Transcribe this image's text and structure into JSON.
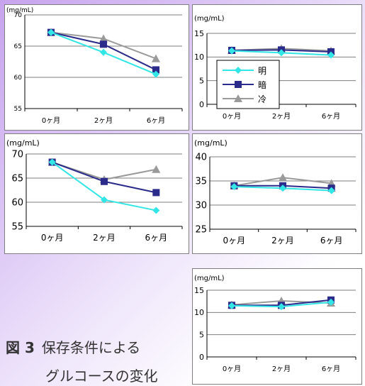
{
  "caption": {
    "number": "図 3",
    "line1": "保存条件による",
    "line2": "グルコースの変化"
  },
  "legend": {
    "items": [
      "明",
      "暗",
      "冷"
    ]
  },
  "colors": {
    "明": "#33e6e6",
    "暗": "#2b2b8c",
    "冷": "#9a9a9a",
    "grid": "#7f7f7f",
    "axis": "#000000"
  },
  "chart_data": [
    {
      "type": "line",
      "ylabel": "(mg/mL)",
      "ylim": [
        55,
        70
      ],
      "yticks": [
        55,
        60,
        65,
        70
      ],
      "categories": [
        "0ヶ月",
        "2ヶ月",
        "6ヶ月"
      ],
      "legend": "none",
      "grid": true,
      "series": [
        {
          "name": "明",
          "values": [
            67.2,
            64.0,
            60.5
          ]
        },
        {
          "name": "暗",
          "values": [
            67.2,
            65.3,
            61.2
          ]
        },
        {
          "name": "冷",
          "values": [
            67.2,
            66.2,
            63.0
          ]
        }
      ]
    },
    {
      "type": "line",
      "ylabel": "(mg/mL)",
      "ylim": [
        0,
        15
      ],
      "yticks": [
        0,
        5,
        10,
        15
      ],
      "categories": [
        "0ヶ月",
        "2ヶ月",
        "6ヶ月"
      ],
      "legend": "inside-left",
      "grid": true,
      "series": [
        {
          "name": "明",
          "values": [
            11.3,
            10.9,
            10.4
          ]
        },
        {
          "name": "暗",
          "values": [
            11.4,
            11.5,
            11.1
          ]
        },
        {
          "name": "冷",
          "values": [
            11.4,
            11.8,
            11.3
          ]
        }
      ]
    },
    {
      "type": "line",
      "ylabel": "(mg/mL)",
      "ylim": [
        55,
        70
      ],
      "yticks": [
        55,
        60,
        65,
        70
      ],
      "categories": [
        "0ヶ月",
        "2ヶ月",
        "6ヶ月"
      ],
      "legend": "none",
      "grid": true,
      "series": [
        {
          "name": "明",
          "values": [
            68.3,
            60.5,
            58.3
          ]
        },
        {
          "name": "暗",
          "values": [
            68.3,
            64.3,
            62.0
          ]
        },
        {
          "name": "冷",
          "values": [
            68.3,
            64.7,
            66.8
          ]
        }
      ]
    },
    {
      "type": "line",
      "ylabel": "(mg/mL)",
      "ylim": [
        25,
        40
      ],
      "yticks": [
        25,
        30,
        35,
        40
      ],
      "categories": [
        "0ヶ月",
        "2ヶ月",
        "6ヶ月"
      ],
      "legend": "none",
      "grid": true,
      "series": [
        {
          "name": "明",
          "values": [
            33.8,
            33.5,
            33.0
          ]
        },
        {
          "name": "暗",
          "values": [
            34.0,
            34.0,
            33.5
          ]
        },
        {
          "name": "冷",
          "values": [
            34.0,
            35.7,
            34.5
          ]
        }
      ]
    },
    {
      "type": "line",
      "ylabel": "(mg/mL)",
      "ylim": [
        0,
        15
      ],
      "yticks": [
        0,
        5,
        10,
        15
      ],
      "categories": [
        "0ヶ月",
        "2ヶ月",
        "6ヶ月"
      ],
      "legend": "none",
      "grid": true,
      "series": [
        {
          "name": "明",
          "values": [
            11.5,
            11.3,
            12.3
          ]
        },
        {
          "name": "暗",
          "values": [
            11.6,
            11.6,
            12.8
          ]
        },
        {
          "name": "冷",
          "values": [
            11.7,
            12.6,
            12.1
          ]
        }
      ]
    }
  ]
}
